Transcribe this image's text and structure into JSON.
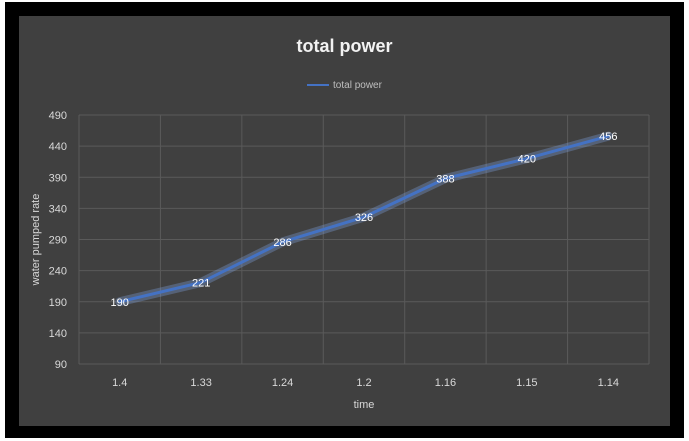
{
  "chart_data": {
    "type": "line",
    "title": "total power",
    "xlabel": "time",
    "ylabel": "water pumped rate",
    "categories": [
      "1.4",
      "1.33",
      "1.24",
      "1.2",
      "1.16",
      "1.15",
      "1.14"
    ],
    "series": [
      {
        "name": "total power",
        "values": [
          190,
          221,
          286,
          326,
          388,
          420,
          456
        ],
        "color": "#4472c4"
      }
    ],
    "y_ticks": [
      "90",
      "140",
      "190",
      "240",
      "290",
      "340",
      "390",
      "440",
      "490"
    ],
    "ylim": [
      90,
      490
    ],
    "data_labels": [
      "190",
      "221",
      "286",
      "326",
      "388",
      "420",
      "456"
    ],
    "grid": true,
    "legend_position": "top"
  }
}
